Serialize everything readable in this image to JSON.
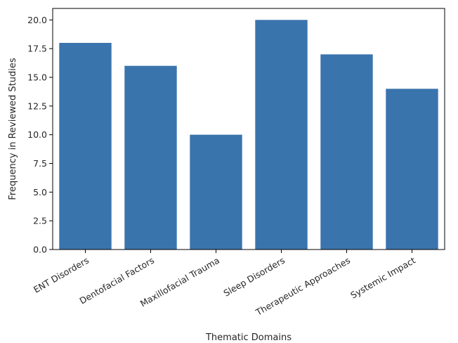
{
  "chart_data": {
    "type": "bar",
    "title": "",
    "xlabel": "Thematic Domains",
    "ylabel": "Frequency in Reviewed Studies",
    "categories": [
      "ENT Disorders",
      "Dentofacial Factors",
      "Maxillofacial Trauma",
      "Sleep Disorders",
      "Therapeutic Approaches",
      "Systemic Impact"
    ],
    "values": [
      18,
      16,
      10,
      20,
      17,
      14
    ],
    "ylim": [
      0,
      21
    ],
    "yticks": [
      0.0,
      2.5,
      5.0,
      7.5,
      10.0,
      12.5,
      15.0,
      17.5,
      20.0
    ],
    "ytick_labels": [
      "0.0",
      "2.5",
      "5.0",
      "7.5",
      "10.0",
      "12.5",
      "15.0",
      "17.5",
      "20.0"
    ],
    "grid": false,
    "bar_color": "#3a74ad"
  }
}
